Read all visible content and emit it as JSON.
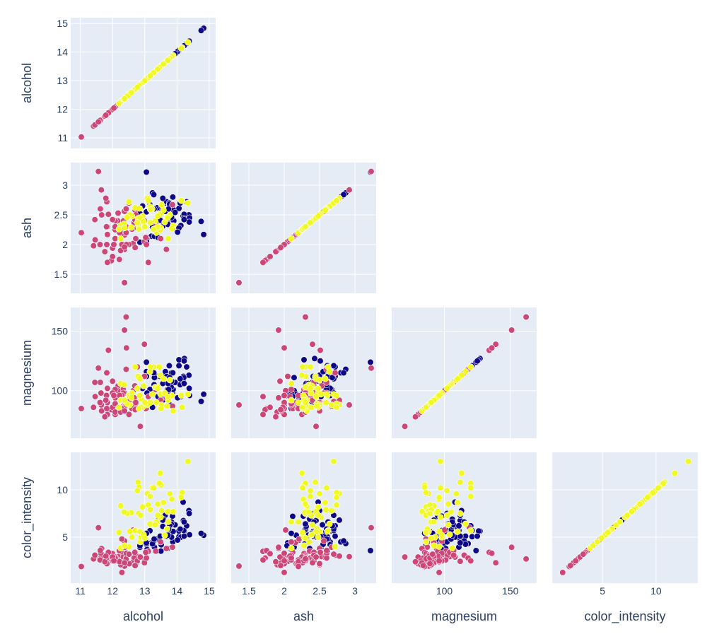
{
  "chart_data": {
    "type": "scatter",
    "subtype": "scatter-matrix (lower triangle)",
    "dimensions": [
      "alcohol",
      "ash",
      "magnesium",
      "color_intensity"
    ],
    "axis_ranges": {
      "alcohol": [
        10.7,
        15.2
      ],
      "ash": [
        1.25,
        3.3
      ],
      "magnesium": [
        60,
        170
      ],
      "color_intensity": [
        0.3,
        13.9
      ]
    },
    "ticks": {
      "alcohol": [
        11,
        12,
        13,
        14,
        15
      ],
      "ash": [
        1.5,
        2,
        2.5,
        3
      ],
      "magnesium": [
        100,
        150
      ],
      "color_intensity": [
        5,
        10
      ]
    },
    "grid": true,
    "legend": "none",
    "colors": {
      "background": "#e5ecf6",
      "grid": "#ffffff",
      "class_0": "#0d0887",
      "class_1": "#cc4778",
      "class_2": "#f0f921"
    },
    "series": [
      {
        "color": "#0d0887",
        "points": [
          [
            14.23,
            2.43,
            127,
            5.64
          ],
          [
            13.2,
            2.14,
            100,
            4.38
          ],
          [
            13.16,
            2.67,
            101,
            5.68
          ],
          [
            14.37,
            2.5,
            113,
            7.8
          ],
          [
            13.24,
            2.87,
            118,
            4.32
          ],
          [
            14.2,
            2.45,
            112,
            6.75
          ],
          [
            14.39,
            2.45,
            96,
            5.25
          ],
          [
            14.06,
            2.61,
            121,
            5.05
          ],
          [
            14.83,
            2.17,
            97,
            5.2
          ],
          [
            13.86,
            2.27,
            98,
            7.22
          ],
          [
            14.1,
            2.3,
            105,
            5.75
          ],
          [
            14.12,
            2.32,
            95,
            5.0
          ],
          [
            13.75,
            2.41,
            89,
            5.6
          ],
          [
            14.75,
            2.39,
            91,
            5.4
          ],
          [
            14.38,
            2.38,
            102,
            7.5
          ],
          [
            13.63,
            2.7,
            112,
            7.3
          ],
          [
            14.3,
            2.72,
            120,
            6.2
          ],
          [
            13.83,
            2.62,
            115,
            6.6
          ],
          [
            14.19,
            2.48,
            108,
            8.7
          ],
          [
            13.64,
            2.56,
            116,
            5.1
          ],
          [
            14.06,
            2.28,
            126,
            5.65
          ],
          [
            12.93,
            2.65,
            102,
            4.5
          ],
          [
            13.71,
            2.36,
            101,
            3.8
          ],
          [
            12.85,
            2.52,
            95,
            3.93
          ],
          [
            13.5,
            2.61,
            96,
            3.52
          ],
          [
            13.05,
            3.22,
            124,
            3.58
          ],
          [
            13.39,
            2.62,
            112,
            4.8
          ],
          [
            13.3,
            2.14,
            111,
            3.95
          ],
          [
            13.87,
            2.8,
            115,
            4.5
          ],
          [
            14.02,
            2.21,
            94,
            4.7
          ],
          [
            13.73,
            2.7,
            98,
            5.7
          ],
          [
            13.58,
            2.36,
            106,
            6.9
          ],
          [
            13.68,
            2.72,
            112,
            5.1
          ],
          [
            13.76,
            2.7,
            121,
            5.7
          ],
          [
            13.51,
            2.65,
            96,
            4.2
          ],
          [
            13.48,
            2.41,
            112,
            5.1
          ],
          [
            13.28,
            2.84,
            115,
            4.6
          ],
          [
            13.05,
            2.55,
            116,
            4.25
          ],
          [
            13.07,
            2.1,
            98,
            3.7
          ],
          [
            14.22,
            2.51,
            125,
            5.1
          ],
          [
            13.56,
            2.31,
            106,
            6.13
          ],
          [
            13.41,
            2.12,
            95,
            7.2
          ],
          [
            13.88,
            2.59,
            101,
            5.6
          ],
          [
            13.24,
            2.29,
            86,
            4.28
          ],
          [
            13.05,
            2.1,
            85,
            5.4
          ],
          [
            14.21,
            2.44,
            111,
            5.7
          ],
          [
            13.9,
            2.4,
            107,
            6.3
          ],
          [
            14.1,
            2.7,
            110,
            5.85
          ],
          [
            13.94,
            2.54,
            107,
            6.3
          ],
          [
            13.05,
            2.05,
            112,
            4.4
          ],
          [
            13.83,
            2.46,
            108,
            5.0
          ],
          [
            13.82,
            2.3,
            103,
            6.4
          ],
          [
            13.77,
            2.68,
            111,
            6.2
          ],
          [
            13.74,
            2.6,
            101,
            5.85
          ],
          [
            13.56,
            2.78,
            92,
            6.8
          ],
          [
            14.22,
            2.42,
            106,
            6.6
          ],
          [
            13.29,
            2.6,
            105,
            4.8
          ],
          [
            13.72,
            2.34,
            106,
            5.2
          ],
          [
            12.85,
            2.04,
            96,
            4.1
          ]
        ]
      },
      {
        "color": "#cc4778",
        "points": [
          [
            12.37,
            1.36,
            88,
            1.95
          ],
          [
            12.33,
            2.28,
            101,
            3.27
          ],
          [
            12.64,
            2.02,
            100,
            5.75
          ],
          [
            13.67,
            1.92,
            94,
            3.8
          ],
          [
            12.37,
            2.16,
            87,
            4.45
          ],
          [
            12.17,
            2.53,
            104,
            2.95
          ],
          [
            12.37,
            2.56,
            98,
            4.6
          ],
          [
            13.11,
            1.7,
            95,
            3.5
          ],
          [
            12.37,
            1.92,
            151,
            3.93
          ],
          [
            13.34,
            2.36,
            101,
            3.52
          ],
          [
            12.21,
            1.75,
            85,
            3.58
          ],
          [
            12.29,
            2.21,
            86,
            4.8
          ],
          [
            13.86,
            2.67,
            87,
            3.95
          ],
          [
            13.49,
            2.1,
            92,
            4.5
          ],
          [
            12.99,
            2.05,
            112,
            2.45
          ],
          [
            11.96,
            1.73,
            84,
            2.8
          ],
          [
            11.66,
            2.5,
            83,
            3.8
          ],
          [
            13.03,
            2.12,
            85,
            3.4
          ],
          [
            11.84,
            1.7,
            80,
            2.6
          ],
          [
            12.99,
            2.4,
            139,
            2.3
          ],
          [
            11.84,
            2.3,
            102,
            3.05
          ],
          [
            12.33,
            2.3,
            98,
            2.9
          ],
          [
            12.7,
            2.58,
            90,
            2.85
          ],
          [
            12.0,
            1.8,
            86,
            3.25
          ],
          [
            12.72,
            2.1,
            88,
            3.1
          ],
          [
            12.08,
            2.25,
            80,
            2.9
          ],
          [
            13.05,
            2.0,
            88,
            2.8
          ],
          [
            11.84,
            2.17,
            90,
            2.2
          ],
          [
            12.67,
            2.37,
            94,
            2.8
          ],
          [
            12.16,
            2.4,
            100,
            2.6
          ],
          [
            11.65,
            2.92,
            88,
            2.94
          ],
          [
            11.64,
            2.6,
            98,
            3.3
          ],
          [
            12.08,
            2.4,
            94,
            2.7
          ],
          [
            12.08,
            2.1,
            101,
            2.6
          ],
          [
            12.0,
            2.42,
            98,
            2.5
          ],
          [
            12.69,
            2.42,
            104,
            3.4
          ],
          [
            11.62,
            2.6,
            107,
            3.6
          ],
          [
            11.81,
            2.3,
            96,
            2.8
          ],
          [
            12.29,
            2.0,
            96,
            1.28
          ],
          [
            12.37,
            2.24,
            86,
            2.4
          ],
          [
            12.29,
            2.19,
            85,
            2.2
          ],
          [
            12.08,
            2.3,
            82,
            2.5
          ],
          [
            12.6,
            2.26,
            85,
            2.3
          ],
          [
            12.34,
            2.4,
            92,
            2.3
          ],
          [
            11.82,
            2.0,
            85,
            2.2
          ],
          [
            12.51,
            2.0,
            80,
            2.2
          ],
          [
            12.42,
            2.2,
            88,
            2.6
          ],
          [
            12.25,
            1.9,
            82,
            2.1
          ],
          [
            12.72,
            2.5,
            90,
            2.1
          ],
          [
            12.22,
            2.2,
            96,
            2.4
          ],
          [
            11.61,
            2.0,
            90,
            2.6
          ],
          [
            11.46,
            2.08,
            95,
            3.0
          ],
          [
            12.52,
            2.5,
            89,
            2.2
          ],
          [
            11.76,
            1.88,
            78,
            2.4
          ],
          [
            11.41,
            1.98,
            86,
            2.7
          ],
          [
            12.08,
            2.1,
            89,
            2.8
          ],
          [
            11.03,
            2.2,
            85,
            1.9
          ],
          [
            11.82,
            2.72,
            115,
            3.1
          ],
          [
            12.42,
            2.6,
            118,
            2.8
          ],
          [
            12.77,
            2.28,
            120,
            2.5
          ],
          [
            12.0,
            1.94,
            108,
            2.9
          ],
          [
            11.45,
            2.42,
            107,
            3.1
          ],
          [
            11.56,
            3.23,
            119,
            6.0
          ],
          [
            12.42,
            2.3,
            162,
            2.7
          ],
          [
            11.87,
            2.51,
            134,
            3.4
          ],
          [
            12.43,
            2.0,
            136,
            3.3
          ],
          [
            11.79,
            2.78,
            92,
            3.0
          ],
          [
            12.37,
            1.96,
            83,
            2.3
          ],
          [
            12.04,
            2.0,
            96,
            2.5
          ],
          [
            12.86,
            2.45,
            70,
            2.9
          ],
          [
            12.7,
            1.95,
            84,
            2.0
          ],
          [
            12.51,
            2.7,
            91,
            3.2
          ]
        ]
      },
      {
        "color": "#f0f921",
        "points": [
          [
            12.86,
            2.35,
            86,
            4.5
          ],
          [
            12.88,
            2.28,
            93,
            5.0
          ],
          [
            12.81,
            2.3,
            112,
            7.5
          ],
          [
            12.7,
            2.62,
            120,
            5.7
          ],
          [
            12.51,
            2.72,
            96,
            4.0
          ],
          [
            12.6,
            2.48,
            98,
            5.0
          ],
          [
            12.25,
            2.1,
            106,
            3.85
          ],
          [
            12.53,
            2.5,
            88,
            5.6
          ],
          [
            13.49,
            2.52,
            97,
            7.1
          ],
          [
            12.84,
            2.61,
            96,
            5.6
          ],
          [
            12.93,
            2.48,
            86,
            8.2
          ],
          [
            13.36,
            2.2,
            90,
            6.6
          ],
          [
            13.52,
            2.67,
            88,
            7.8
          ],
          [
            13.62,
            2.38,
            98,
            5.2
          ],
          [
            12.25,
            2.32,
            92,
            8.3
          ],
          [
            13.16,
            2.64,
            116,
            6.4
          ],
          [
            13.88,
            2.32,
            83,
            7.7
          ],
          [
            12.87,
            2.38,
            86,
            7.3
          ],
          [
            13.32,
            2.4,
            103,
            6.3
          ],
          [
            13.08,
            2.78,
            88,
            9.6
          ],
          [
            13.5,
            2.28,
            85,
            10.5
          ],
          [
            12.79,
            2.44,
            112,
            10.8
          ],
          [
            13.11,
            2.74,
            89,
            8.4
          ],
          [
            13.23,
            2.6,
            97,
            10.2
          ],
          [
            12.58,
            2.29,
            94,
            7.6
          ],
          [
            13.17,
            2.59,
            90,
            7.9
          ],
          [
            13.84,
            2.27,
            96,
            9.01
          ],
          [
            12.45,
            2.46,
            89,
            7.5
          ],
          [
            14.34,
            2.7,
            97,
            13.0
          ],
          [
            13.48,
            2.25,
            113,
            11.75
          ],
          [
            12.36,
            2.35,
            105,
            7.65
          ],
          [
            13.69,
            2.46,
            87,
            5.88
          ],
          [
            12.85,
            2.45,
            110,
            5.58
          ],
          [
            12.96,
            2.39,
            104,
            5.28
          ],
          [
            13.78,
            2.5,
            109,
            9.58
          ],
          [
            13.73,
            2.1,
            92,
            6.62
          ],
          [
            13.45,
            2.3,
            120,
            10.68
          ],
          [
            12.82,
            2.26,
            85,
            10.26
          ],
          [
            13.58,
            2.58,
            110,
            8.66
          ],
          [
            13.4,
            2.3,
            103,
            8.5
          ],
          [
            12.2,
            2.26,
            86,
            5.5
          ],
          [
            12.77,
            2.37,
            102,
            9.9
          ],
          [
            14.16,
            2.74,
            86,
            9.7
          ],
          [
            13.71,
            2.45,
            95,
            7.7
          ],
          [
            13.4,
            2.48,
            102,
            7.3
          ],
          [
            13.27,
            2.26,
            120,
            10.2
          ],
          [
            13.17,
            2.37,
            120,
            9.3
          ],
          [
            14.13,
            2.74,
            96,
            9.2
          ],
          [
            12.37,
            2.28,
            92,
            4.1
          ],
          [
            13.0,
            2.3,
            90,
            4.9
          ]
        ]
      }
    ]
  }
}
